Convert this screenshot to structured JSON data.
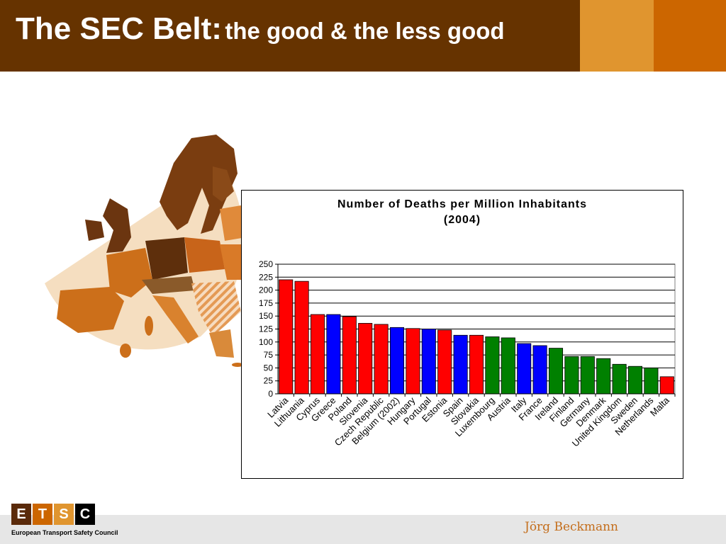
{
  "header": {
    "title_main": "The SEC Belt:",
    "title_sub": "the good & the less good"
  },
  "colors": {
    "header_bg": "#663300",
    "accent_light": "#e0952f",
    "accent_dark": "#cc6600",
    "bar_red": "#ff0000",
    "bar_blue": "#0000ff",
    "bar_green": "#008000"
  },
  "map": {
    "icon": "europe-map-icon"
  },
  "chart_data": {
    "type": "bar",
    "title": "Number of Deaths per Million Inhabitants",
    "subtitle": "(2004)",
    "ylim": [
      0,
      250
    ],
    "yticks": [
      "0",
      "25",
      "50",
      "75",
      "100",
      "125",
      "150",
      "175",
      "200",
      "225",
      "250"
    ],
    "categories": [
      "Latvia",
      "Lithuania",
      "Cyprus",
      "Greece",
      "Poland",
      "Slovenia",
      "Czech Republic",
      "Belgium (2002)",
      "Hungary",
      "Portugal",
      "Estonia",
      "Spain",
      "Slovakia",
      "Luxembourg",
      "Austria",
      "Italy",
      "France",
      "Ireland",
      "Finland",
      "Germany",
      "Denmark",
      "United Kingdom",
      "Sweden",
      "Netherlands",
      "Malta"
    ],
    "values": [
      220,
      217,
      153,
      153,
      149,
      136,
      134,
      128,
      126,
      125,
      123,
      113,
      113,
      110,
      108,
      97,
      93,
      88,
      72,
      72,
      68,
      57,
      53,
      50,
      33
    ],
    "bar_colors": [
      "red",
      "red",
      "red",
      "blue",
      "red",
      "red",
      "red",
      "blue",
      "red",
      "blue",
      "red",
      "blue",
      "red",
      "green",
      "green",
      "blue",
      "blue",
      "green",
      "green",
      "green",
      "green",
      "green",
      "green",
      "green",
      "red"
    ],
    "grid": true
  },
  "footer": {
    "logo_letters": [
      "E",
      "T",
      "S",
      "C"
    ],
    "logo_caption": "European Transport Safety Council",
    "author": "Jörg Beckmann"
  }
}
